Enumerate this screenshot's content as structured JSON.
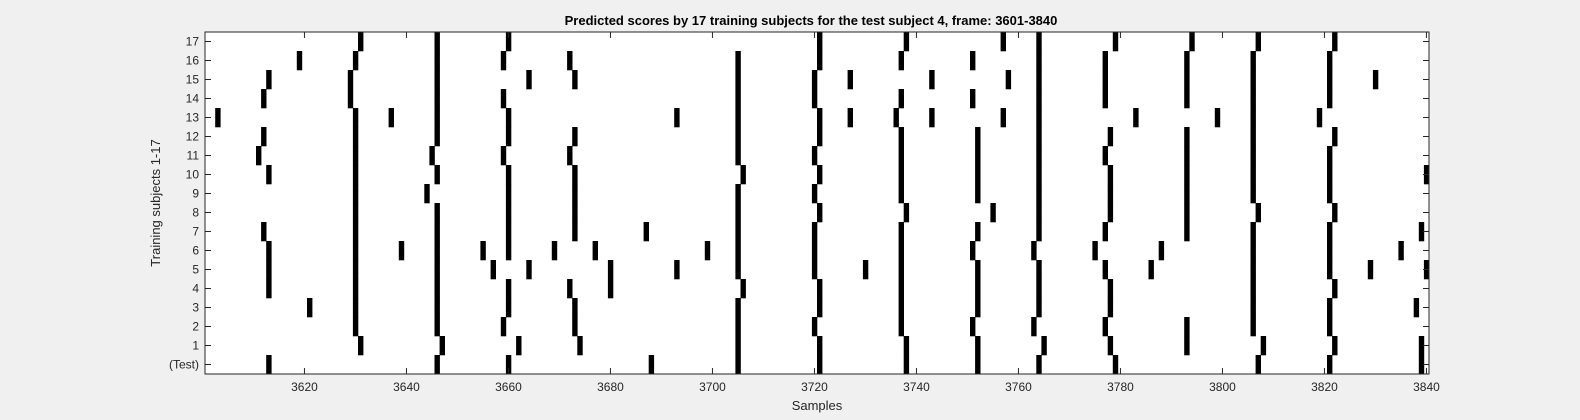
{
  "chart_data": {
    "type": "heatmap",
    "title": "Predicted scores by 17 training subjects for the test subject 4, frame: 3601-3840",
    "xlabel": "Samples",
    "ylabel": "Training subjects 1-17",
    "xlim": [
      3601,
      3840
    ],
    "x_ticks": [
      3620,
      3640,
      3660,
      3680,
      3700,
      3720,
      3740,
      3760,
      3780,
      3800,
      3820,
      3840
    ],
    "y_tick_labels": [
      "(Test)",
      "1",
      "2",
      "3",
      "4",
      "5",
      "6",
      "7",
      "8",
      "9",
      "10",
      "11",
      "12",
      "13",
      "14",
      "15",
      "16",
      "17"
    ],
    "grid": false,
    "colors": {
      "background": "#ffffff",
      "mark": "#000000",
      "figure": "#f0f0f0"
    },
    "rows": [
      {
        "label": "(Test)",
        "x": [
          3613,
          3646,
          3660,
          3688,
          3705,
          3721,
          3738,
          3752,
          3764,
          3779,
          3807,
          3821,
          3839
        ]
      },
      {
        "label": "1",
        "x": [
          3631,
          3647,
          3662,
          3674,
          3705,
          3721,
          3738,
          3752,
          3765,
          3778,
          3793,
          3808,
          3822,
          3839
        ]
      },
      {
        "label": "2",
        "x": [
          3630,
          3646,
          3659,
          3673,
          3705,
          3720,
          3737,
          3751,
          3763,
          3777,
          3793,
          3806,
          3821
        ]
      },
      {
        "label": "3",
        "x": [
          3621,
          3630,
          3646,
          3660,
          3673,
          3705,
          3721,
          3737,
          3752,
          3764,
          3778,
          3806,
          3821,
          3838
        ]
      },
      {
        "label": "4",
        "x": [
          3613,
          3630,
          3646,
          3660,
          3672,
          3680,
          3706,
          3721,
          3737,
          3752,
          3764,
          3778,
          3806,
          3822
        ]
      },
      {
        "label": "5",
        "x": [
          3613,
          3630,
          3646,
          3657,
          3664,
          3680,
          3693,
          3705,
          3720,
          3730,
          3737,
          3752,
          3764,
          3777,
          3786,
          3806,
          3821,
          3829,
          3840
        ]
      },
      {
        "label": "6",
        "x": [
          3613,
          3630,
          3639,
          3646,
          3655,
          3660,
          3669,
          3677,
          3699,
          3705,
          3720,
          3737,
          3751,
          3763,
          3775,
          3788,
          3806,
          3821,
          3835
        ]
      },
      {
        "label": "7",
        "x": [
          3612,
          3630,
          3646,
          3660,
          3673,
          3687,
          3705,
          3720,
          3737,
          3752,
          3764,
          3777,
          3793,
          3806,
          3821,
          3839
        ]
      },
      {
        "label": "8",
        "x": [
          3630,
          3646,
          3660,
          3673,
          3705,
          3721,
          3738,
          3755,
          3764,
          3778,
          3793,
          3807,
          3822
        ]
      },
      {
        "label": "9",
        "x": [
          3630,
          3644,
          3660,
          3673,
          3705,
          3720,
          3737,
          3752,
          3764,
          3778,
          3793,
          3806,
          3821
        ]
      },
      {
        "label": "10",
        "x": [
          3613,
          3630,
          3646,
          3660,
          3673,
          3706,
          3721,
          3737,
          3752,
          3764,
          3778,
          3793,
          3806,
          3821,
          3840
        ]
      },
      {
        "label": "11",
        "x": [
          3611,
          3630,
          3645,
          3659,
          3672,
          3705,
          3720,
          3737,
          3752,
          3764,
          3777,
          3793,
          3806,
          3821
        ]
      },
      {
        "label": "12",
        "x": [
          3612,
          3630,
          3646,
          3660,
          3673,
          3705,
          3721,
          3737,
          3752,
          3764,
          3778,
          3793,
          3806,
          3822
        ]
      },
      {
        "label": "13",
        "x": [
          3603,
          3630,
          3637,
          3646,
          3660,
          3693,
          3705,
          3721,
          3727,
          3736,
          3743,
          3757,
          3764,
          3783,
          3799,
          3806,
          3819
        ]
      },
      {
        "label": "14",
        "x": [
          3612,
          3629,
          3646,
          3659,
          3705,
          3720,
          3737,
          3751,
          3764,
          3777,
          3793,
          3806,
          3821
        ]
      },
      {
        "label": "15",
        "x": [
          3613,
          3629,
          3646,
          3664,
          3673,
          3705,
          3720,
          3727,
          3743,
          3758,
          3764,
          3777,
          3793,
          3806,
          3821,
          3830
        ]
      },
      {
        "label": "16",
        "x": [
          3619,
          3630,
          3646,
          3659,
          3672,
          3705,
          3721,
          3737,
          3751,
          3764,
          3777,
          3793,
          3806,
          3821
        ]
      },
      {
        "label": "17",
        "x": [
          3631,
          3646,
          3660,
          3721,
          3738,
          3757,
          3764,
          3779,
          3794,
          3807,
          3822
        ]
      }
    ]
  }
}
